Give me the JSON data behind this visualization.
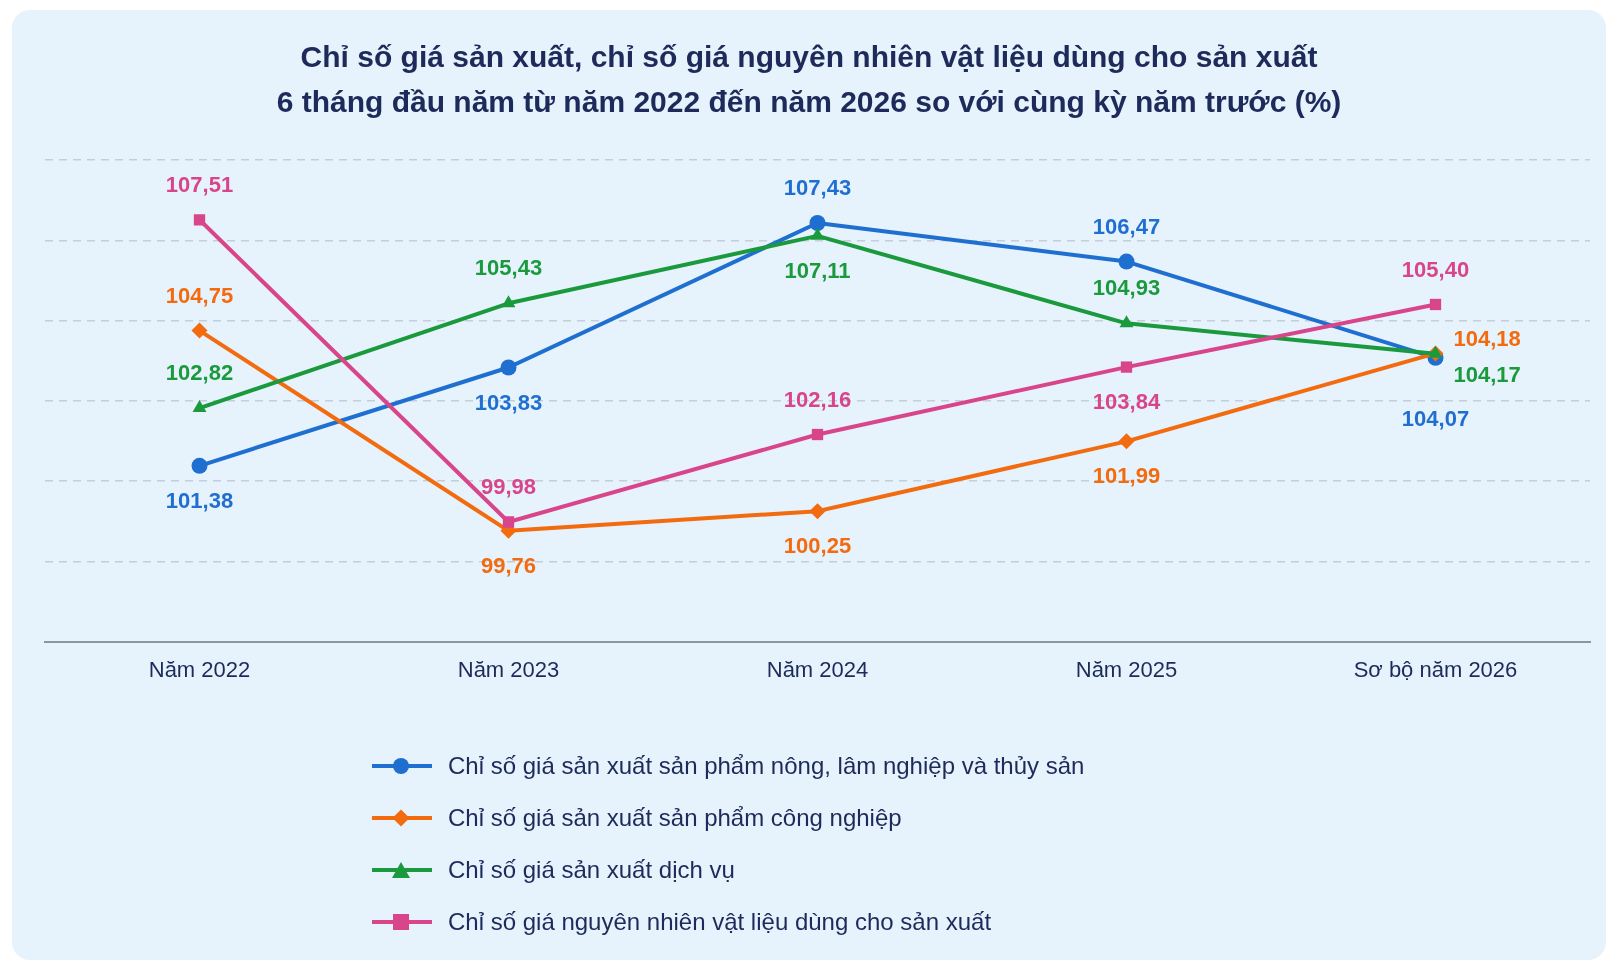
{
  "chart_data": {
    "type": "line",
    "title": "Chỉ số giá sản xuất, chỉ số giá nguyên nhiên vật liệu dùng cho sản xuất\n6 tháng đầu năm từ năm 2022 đến năm 2026 so với cùng kỳ năm trước (%)",
    "categories": [
      "Năm 2022",
      "Năm 2023",
      "Năm 2024",
      "Năm 2025",
      "Sơ bộ năm 2026"
    ],
    "series": [
      {
        "name": "Chỉ số giá sản xuất sản phẩm nông, lâm nghiệp và thủy sản",
        "color": "#1f6fd1",
        "marker": "circle",
        "values": [
          101.38,
          103.83,
          107.43,
          106.47,
          104.07
        ],
        "value_labels": [
          "101,38",
          "103,83",
          "107,43",
          "106,47",
          "104,07"
        ]
      },
      {
        "name": "Chỉ số giá sản xuất sản phẩm công nghiệp",
        "color": "#f26b0f",
        "marker": "diamond",
        "values": [
          104.75,
          99.76,
          100.25,
          101.99,
          104.18
        ],
        "value_labels": [
          "104,75",
          "99,76",
          "100,25",
          "101,99",
          "104,18"
        ]
      },
      {
        "name": "Chỉ số giá sản xuất dịch vụ",
        "color": "#1a9a3c",
        "marker": "triangle",
        "values": [
          102.82,
          105.43,
          107.11,
          104.93,
          104.17
        ],
        "value_labels": [
          "102,82",
          "105,43",
          "107,11",
          "104,93",
          "104,17"
        ]
      },
      {
        "name": "Chỉ số giá nguyên nhiên vật liệu dùng cho sản xuất",
        "color": "#d9458a",
        "marker": "square",
        "values": [
          107.51,
          99.98,
          102.16,
          103.84,
          105.4
        ],
        "value_labels": [
          "107,51",
          "99,98",
          "102,16",
          "103,84",
          "105,40"
        ]
      }
    ],
    "ylim": [
      97,
      109
    ],
    "yticks": [
      {
        "value": 97,
        "label": null
      },
      {
        "value": 99,
        "label": null
      },
      {
        "value": 101,
        "label": null
      },
      {
        "value": 103,
        "label": null
      },
      {
        "value": 105,
        "label": null
      },
      {
        "value": 107,
        "label": null
      },
      {
        "value": 109,
        "label": null
      }
    ],
    "tick_labels": "x",
    "grid": "y",
    "legend": "bottom",
    "line_style": "solid"
  }
}
